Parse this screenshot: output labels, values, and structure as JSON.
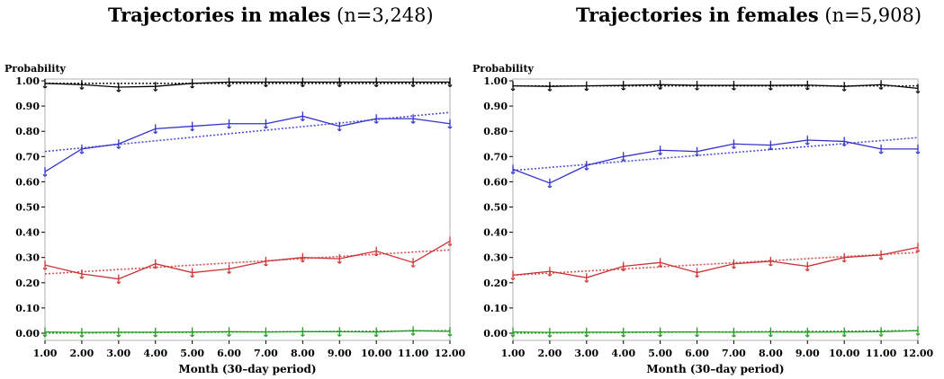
{
  "chart_data": [
    {
      "type": "line",
      "title_main": "Trajectories in males",
      "title_sub": "(n=3,248)",
      "xlabel": "Month (30–day period)",
      "ylabel": "Probability",
      "x": [
        1,
        2,
        3,
        4,
        5,
        6,
        7,
        8,
        9,
        10,
        11,
        12
      ],
      "x_tick_labels": [
        "1.00",
        "2.00",
        "3.00",
        "4.00",
        "5.00",
        "6.00",
        "7.00",
        "8.00",
        "9.00",
        "10.00",
        "11.00",
        "12.00"
      ],
      "y_tick_labels": [
        "0.00",
        "0.10",
        "0.20",
        "0.30",
        "0.40",
        "0.50",
        "0.60",
        "0.70",
        "0.80",
        "0.90",
        "1.00"
      ],
      "xlim": [
        1,
        12
      ],
      "ylim": [
        0,
        1
      ],
      "series": [
        {
          "name": "black",
          "color": "#000000",
          "values": [
            0.99,
            0.985,
            0.975,
            0.978,
            0.99,
            0.995,
            0.995,
            0.995,
            0.995,
            0.995,
            0.995,
            0.995
          ],
          "trend": [
            0.99,
            0.99
          ]
        },
        {
          "name": "blue",
          "color": "#3333cc",
          "values": [
            0.64,
            0.73,
            0.75,
            0.81,
            0.82,
            0.83,
            0.83,
            0.86,
            0.82,
            0.85,
            0.85,
            0.83
          ],
          "trend": [
            0.72,
            0.875
          ]
        },
        {
          "name": "red",
          "color": "#cc3333",
          "values": [
            0.27,
            0.235,
            0.215,
            0.275,
            0.24,
            0.255,
            0.285,
            0.3,
            0.295,
            0.325,
            0.28,
            0.365
          ],
          "trend": [
            0.235,
            0.33
          ]
        },
        {
          "name": "green",
          "color": "#229922",
          "values": [
            0.005,
            0.003,
            0.004,
            0.004,
            0.005,
            0.006,
            0.005,
            0.006,
            0.006,
            0.005,
            0.01,
            0.007
          ],
          "trend": [
            0.0,
            0.01
          ]
        }
      ]
    },
    {
      "type": "line",
      "title_main": "Trajectories in females",
      "title_sub": "(n=5,908)",
      "xlabel": "Month (30–day period)",
      "ylabel": "Probability",
      "x": [
        1,
        2,
        3,
        4,
        5,
        6,
        7,
        8,
        9,
        10,
        11,
        12
      ],
      "x_tick_labels": [
        "1.00",
        "2.00",
        "3.00",
        "4.00",
        "5.00",
        "6.00",
        "7.00",
        "8.00",
        "9.00",
        "10.00",
        "11.00",
        "12.00"
      ],
      "y_tick_labels": [
        "0.00",
        "0.10",
        "0.20",
        "0.30",
        "0.40",
        "0.50",
        "0.60",
        "0.70",
        "0.80",
        "0.90",
        "1.00"
      ],
      "xlim": [
        1,
        12
      ],
      "ylim": [
        0,
        1
      ],
      "series": [
        {
          "name": "black",
          "color": "#000000",
          "values": [
            0.98,
            0.978,
            0.98,
            0.982,
            0.985,
            0.982,
            0.982,
            0.982,
            0.983,
            0.978,
            0.985,
            0.97
          ],
          "trend": [
            0.98,
            0.98
          ]
        },
        {
          "name": "blue",
          "color": "#3333cc",
          "values": [
            0.65,
            0.595,
            0.665,
            0.7,
            0.725,
            0.72,
            0.75,
            0.745,
            0.765,
            0.76,
            0.73,
            0.73
          ],
          "trend": [
            0.645,
            0.775
          ]
        },
        {
          "name": "red",
          "color": "#cc3333",
          "values": [
            0.23,
            0.245,
            0.22,
            0.265,
            0.28,
            0.24,
            0.275,
            0.285,
            0.265,
            0.3,
            0.31,
            0.34
          ],
          "trend": [
            0.23,
            0.32
          ]
        },
        {
          "name": "green",
          "color": "#229922",
          "values": [
            0.005,
            0.003,
            0.004,
            0.004,
            0.005,
            0.005,
            0.004,
            0.005,
            0.004,
            0.005,
            0.006,
            0.01
          ],
          "trend": [
            0.0,
            0.01
          ]
        }
      ]
    }
  ]
}
